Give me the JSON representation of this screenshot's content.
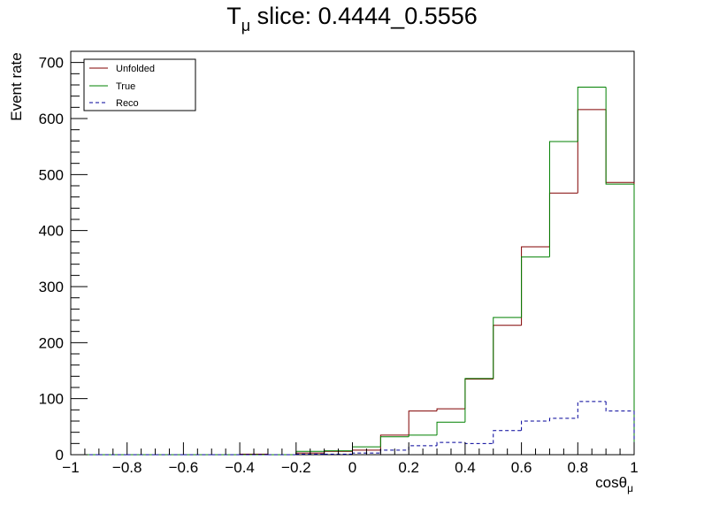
{
  "chart_data": {
    "type": "histogram",
    "title": {
      "main": "T",
      "subscript": "μ",
      "rest": " slice: 0.4444_0.5556"
    },
    "xlabel": {
      "main": "cosθ",
      "subscript": "μ"
    },
    "ylabel": "Event rate",
    "xlim": [
      -1,
      1
    ],
    "ylim": [
      0,
      720
    ],
    "x_ticks": [
      -1,
      -0.8,
      -0.6,
      -0.4,
      -0.2,
      0,
      0.2,
      0.4,
      0.6,
      0.8,
      1
    ],
    "x_tick_labels": [
      "−1",
      "−0.8",
      "−0.6",
      "−0.4",
      "−0.2",
      "0",
      "0.2",
      "0.4",
      "0.6",
      "0.8",
      "1"
    ],
    "y_ticks": [
      0,
      100,
      200,
      300,
      400,
      500,
      600,
      700
    ],
    "y_tick_labels": [
      "0",
      "100",
      "200",
      "300",
      "400",
      "500",
      "600",
      "700"
    ],
    "bin_edges": [
      -1,
      -0.9,
      -0.8,
      -0.7,
      -0.6,
      -0.5,
      -0.4,
      -0.3,
      -0.2,
      -0.1,
      0,
      0.1,
      0.2,
      0.3,
      0.4,
      0.5,
      0.6,
      0.7,
      0.8,
      0.9,
      1
    ],
    "legend_position": "top-left",
    "grid": false,
    "series": [
      {
        "name": "Unfolded",
        "color": "#800000",
        "dashed": false,
        "values": [
          0,
          0,
          0,
          0,
          0,
          0,
          1,
          0,
          3,
          6,
          8,
          35,
          78,
          82,
          135,
          231,
          371,
          467,
          616,
          486
        ]
      },
      {
        "name": "True",
        "color": "#008000",
        "dashed": false,
        "values": [
          0,
          0,
          0,
          0,
          0,
          0,
          0,
          0,
          6,
          7,
          14,
          32,
          35,
          58,
          136,
          245,
          353,
          559,
          656,
          483
        ]
      },
      {
        "name": "Reco",
        "color": "#000099",
        "dashed": true,
        "values": [
          0,
          0,
          0,
          0,
          0,
          0,
          0,
          0,
          1,
          1,
          3,
          8,
          16,
          22,
          20,
          43,
          60,
          65,
          95,
          78
        ]
      }
    ]
  }
}
